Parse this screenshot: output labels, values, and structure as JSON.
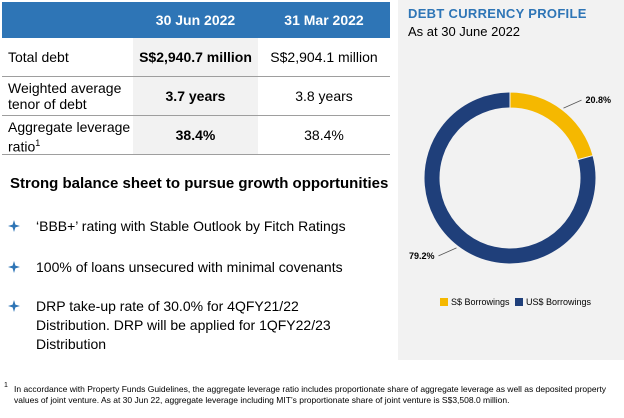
{
  "table": {
    "headers": [
      "",
      "30 Jun 2022",
      "31 Mar 2022"
    ],
    "rows": [
      {
        "label": "Total debt",
        "label2": "",
        "sup": "",
        "v1": "S$2,940.7 million",
        "v2": "S$2,904.1 million"
      },
      {
        "label": "Weighted average",
        "label2": "tenor of debt",
        "sup": "",
        "v1": "3.7 years",
        "v2": "3.8 years"
      },
      {
        "label": "Aggregate leverage",
        "label2": "ratio",
        "sup": "1",
        "v1": "38.4%",
        "v2": "38.4%"
      }
    ]
  },
  "highlights": {
    "heading": "Strong balance sheet to pursue growth opportunities",
    "bullets": [
      {
        "line1": "‘BBB+’ rating with Stable Outlook by Fitch Ratings",
        "line2": "",
        "line3": ""
      },
      {
        "line1": "100% of loans unsecured with minimal covenants",
        "line2": "",
        "line3": ""
      },
      {
        "line1": "DRP take-up rate of 30.0% for 4QFY21/22",
        "line2": "Distribution.  DRP will be applied for 1QFY22/23",
        "line3": "Distribution"
      }
    ],
    "bullet_icon": "star-bullet-icon",
    "bullet_color": "#2e75b6"
  },
  "chart_data": {
    "type": "pie",
    "title": "DEBT CURRENCY PROFILE",
    "subtitle": "As at 30 June 2022",
    "categories": [
      "S$ Borrowings",
      "US$ Borrowings"
    ],
    "values": [
      20.8,
      79.2
    ],
    "data_labels": [
      "20.8%",
      "79.2%"
    ],
    "colors": [
      "#f5b800",
      "#1f3f7a"
    ],
    "donut": true,
    "legend_position": "bottom"
  },
  "footnote": {
    "number": "1",
    "text": "In accordance with Property Funds Guidelines, the aggregate leverage ratio includes proportionate share of aggregate leverage as well as deposited property values of joint venture. As at 30 Jun 22, aggregate leverage including MIT’s proportionate share of joint venture is S$3,508.0 million."
  },
  "colors": {
    "accent": "#2e75b6",
    "panel_bg": "#f2f2f2"
  }
}
